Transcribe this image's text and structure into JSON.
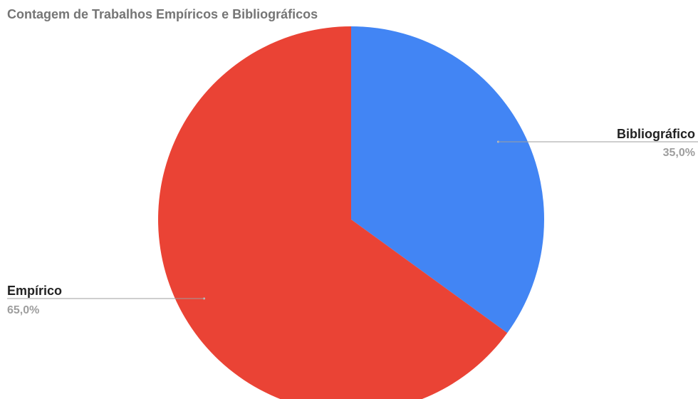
{
  "chart_data": {
    "type": "pie",
    "title": "Contagem de Trabalhos Empíricos e Bibliográficos",
    "slices": [
      {
        "name": "Bibliográfico",
        "value": 35.0,
        "label": "35,0%",
        "color": "#4285f4"
      },
      {
        "name": "Empírico",
        "value": 65.0,
        "label": "65,0%",
        "color": "#ea4335"
      }
    ],
    "legend": "none"
  }
}
